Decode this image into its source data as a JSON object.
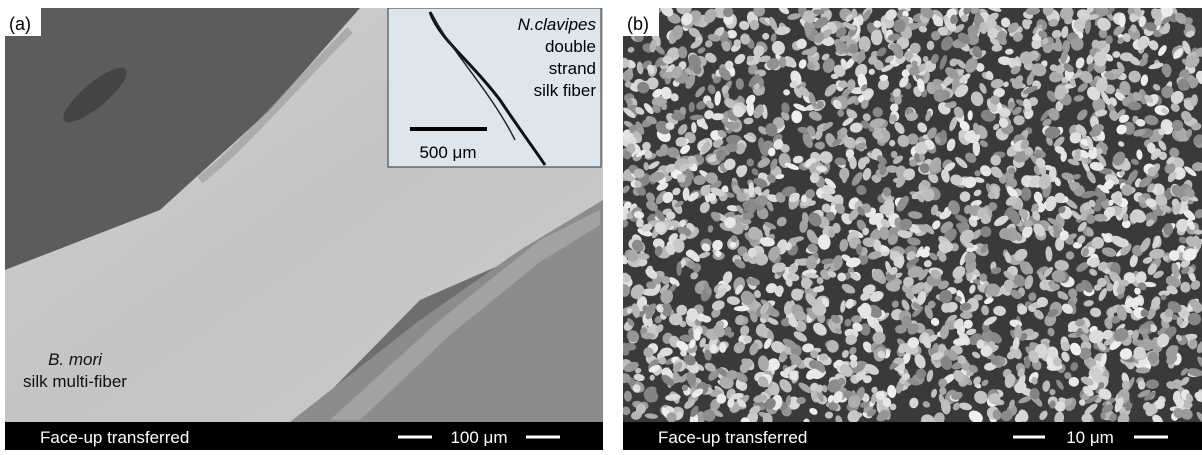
{
  "panels": [
    {
      "label": "(a)",
      "caption": "Face-up transferred",
      "scale_bar": "100 μm",
      "annotation": [
        "B. mori",
        "silk multi-fiber"
      ],
      "inset": {
        "lines": [
          "N.clavipes",
          "double",
          "strand",
          "silk fiber"
        ],
        "scale_bar": "500 μm"
      }
    },
    {
      "label": "(b)",
      "caption": "Face-up transferred",
      "scale_bar": "10 μm"
    }
  ]
}
